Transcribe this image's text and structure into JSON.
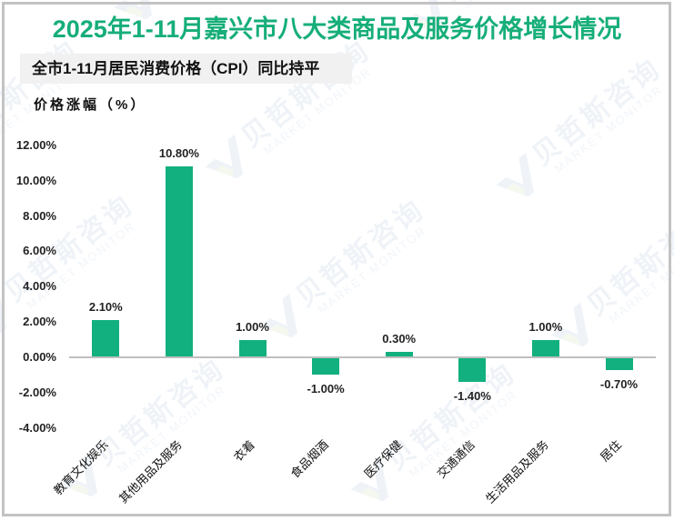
{
  "title": "2025年1-11月嘉兴市八大类商品及服务价格增长情况",
  "subtitle": "全市1-11月居民消费价格（CPI）同比持平",
  "y_axis_title": "价格涨幅（%）",
  "watermark": {
    "brand_cn": "贝哲斯咨询",
    "brand_en": "MARKET MONITOR"
  },
  "colors": {
    "title": "#16AE79",
    "bar": "#12B07E",
    "zero_line": "#BFBFBF",
    "frame": "#C3C3C3"
  },
  "chart_data": {
    "type": "bar",
    "title": "2025年1-11月嘉兴市八大类商品及服务价格增长情况",
    "subtitle": "全市1-11月居民消费价格（CPI）同比持平",
    "xlabel": "",
    "ylabel": "价格涨幅（%）",
    "categories": [
      "教育文化娱乐",
      "其他用品及服务",
      "衣着",
      "食品烟酒",
      "医疗保健",
      "交通通信",
      "生活用品及服务",
      "居住"
    ],
    "values": [
      2.1,
      10.8,
      1.0,
      -1.0,
      0.3,
      -1.4,
      1.0,
      -0.7
    ],
    "value_labels": [
      "2.10%",
      "10.80%",
      "1.00%",
      "-1.00%",
      "0.30%",
      "-1.40%",
      "1.00%",
      "-0.70%"
    ],
    "ylim": [
      -4,
      12
    ],
    "yticks": [
      12,
      10,
      8,
      6,
      4,
      2,
      0,
      -2,
      -4
    ],
    "ytick_labels": [
      "12.00%",
      "10.00%",
      "8.00%",
      "6.00%",
      "4.00%",
      "2.00%",
      "0.00%",
      "-2.00%",
      "-4.00%"
    ],
    "grid": false,
    "legend": null
  }
}
